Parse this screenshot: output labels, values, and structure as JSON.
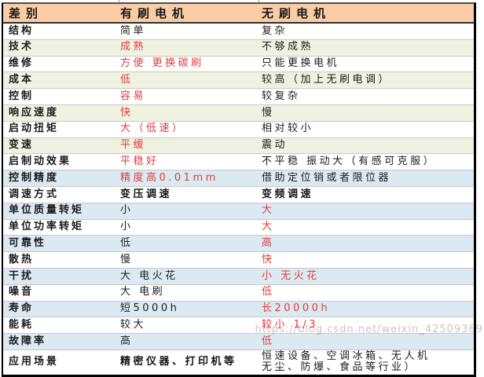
{
  "colors": {
    "header_bg": "#facda6",
    "row_green": "#eff2e1",
    "row_blue": "#dbeaf2",
    "red_text": "#e23b3c",
    "border_black": "#000000",
    "row_divider": "#c9c9c9",
    "watermark_gray": "#cfb4b4"
  },
  "table": {
    "headers": [
      "差别",
      "有刷电机",
      "无刷电机"
    ],
    "rows": [
      {
        "label": "结构",
        "bg": "white",
        "brushed": {
          "text": "简单",
          "style": "normal"
        },
        "brushless": {
          "text": "复杂",
          "style": "normal"
        }
      },
      {
        "label": "技术",
        "bg": "green",
        "brushed": {
          "text": "成熟",
          "style": "red"
        },
        "brushless": {
          "text": "不够成熟",
          "style": "normal"
        }
      },
      {
        "label": "维修",
        "bg": "white",
        "brushed": {
          "text": "方便  更换碳刷",
          "style": "red"
        },
        "brushless": {
          "text": "只能更换电机",
          "style": "normal"
        }
      },
      {
        "label": "成本",
        "bg": "green",
        "brushed": {
          "text": "低",
          "style": "red"
        },
        "brushless": {
          "text": "较高（加上无刷电调）",
          "style": "normal"
        }
      },
      {
        "label": "控制",
        "bg": "white",
        "brushed": {
          "text": "容易",
          "style": "red"
        },
        "brushless": {
          "text": "较复杂",
          "style": "normal"
        }
      },
      {
        "label": "响应速度",
        "bg": "green",
        "brushed": {
          "text": "快",
          "style": "red"
        },
        "brushless": {
          "text": "慢",
          "style": "normal"
        }
      },
      {
        "label": "启动扭矩",
        "bg": "white",
        "brushed": {
          "text": "大（低速）",
          "style": "red"
        },
        "brushless": {
          "text": "相对较小",
          "style": "normal"
        }
      },
      {
        "label": "变速",
        "bg": "green",
        "brushed": {
          "text": "平缓",
          "style": "red"
        },
        "brushless": {
          "text": "震动",
          "style": "normal"
        }
      },
      {
        "label": "启制动效果",
        "bg": "white",
        "brushed": {
          "text": "平稳好",
          "style": "red"
        },
        "brushless": {
          "text": "不平稳  振动大（有感可克服）",
          "style": "normal"
        }
      },
      {
        "label": "控制精度",
        "bg": "blue",
        "brushed": {
          "text": "精度高0.01mm",
          "style": "red"
        },
        "brushless": {
          "text": "借助定位销或者限位器",
          "style": "normal"
        }
      },
      {
        "label": "调速方式",
        "bg": "white",
        "brushed": {
          "text": "变压调速",
          "style": "bold"
        },
        "brushless": {
          "text": "变频调速",
          "style": "bold"
        }
      },
      {
        "label": "单位质量转矩",
        "bg": "blue",
        "brushed": {
          "text": "小",
          "style": "normal"
        },
        "brushless": {
          "text": "大",
          "style": "red"
        }
      },
      {
        "label": "单位功率转矩",
        "bg": "white",
        "brushed": {
          "text": "小",
          "style": "normal"
        },
        "brushless": {
          "text": "大",
          "style": "red"
        }
      },
      {
        "label": "可靠性",
        "bg": "blue",
        "brushed": {
          "text": "低",
          "style": "normal"
        },
        "brushless": {
          "text": "高",
          "style": "red"
        }
      },
      {
        "label": "散热",
        "bg": "white",
        "brushed": {
          "text": "慢",
          "style": "normal"
        },
        "brushless": {
          "text": "快",
          "style": "red"
        }
      },
      {
        "label": "干扰",
        "bg": "blue",
        "brushed": {
          "text": "大  电火花",
          "style": "normal"
        },
        "brushless": {
          "text": "小  无火花",
          "style": "red"
        }
      },
      {
        "label": "噪音",
        "bg": "white",
        "brushed": {
          "text": "大  电刷",
          "style": "normal"
        },
        "brushless": {
          "text": "低",
          "style": "red"
        }
      },
      {
        "label": "寿命",
        "bg": "blue",
        "brushed": {
          "text": "短5000h",
          "style": "normal"
        },
        "brushless": {
          "text": "长20000h",
          "style": "red"
        }
      },
      {
        "label": "能耗",
        "bg": "white",
        "brushed": {
          "text": "较大",
          "style": "normal"
        },
        "brushless": {
          "text": "较小  1/3",
          "style": "red"
        }
      },
      {
        "label": "故障率",
        "bg": "blue",
        "brushed": {
          "text": "高",
          "style": "normal"
        },
        "brushless": {
          "text": "低",
          "style": "red"
        }
      },
      {
        "label": "应用场景",
        "bg": "white",
        "brushed": {
          "text": "精密仪器、打印机等",
          "style": "bold"
        },
        "brushless": {
          "text": "恒速设备、空调冰箱、无人机\n无尘、防爆、食品等行业）",
          "style": "normal"
        }
      }
    ]
  },
  "watermark": "https://blog.csdn.net/weixin_42509369"
}
